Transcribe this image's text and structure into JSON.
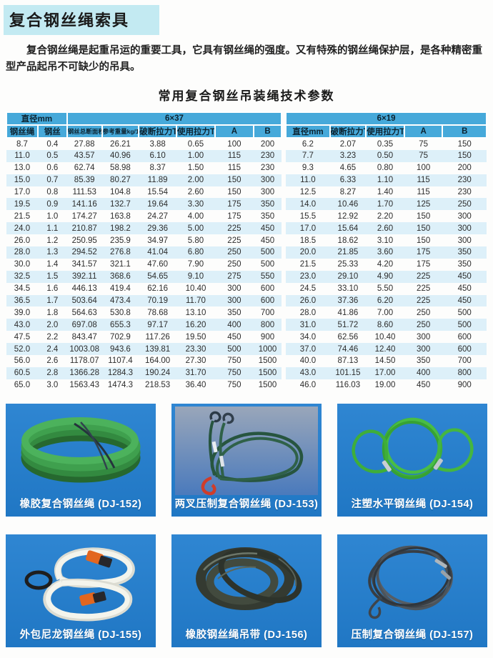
{
  "page": {
    "title": "复合钢丝绳索具",
    "intro": "复合钢丝绳是起重吊运的重要工具，它具有钢丝绳的强度。又有特殊的钢丝绳保护层，是各种精密重型产品起吊不可缺少的吊具。"
  },
  "colors": {
    "title_highlight": "#c3eaf2",
    "table_header_blue": "#46a9da",
    "table_row_alt_blue": "#ddf0f9",
    "panel_blue": "#2580cc",
    "caption_text": "#ffffff"
  },
  "table": {
    "title": "常用复合钢丝吊装绳技术参数",
    "groups": {
      "diameter": "直径mm",
      "g637": "6×37",
      "g619": "6×19"
    },
    "left_columns": [
      "钢丝绳",
      "钢丝",
      "钢丝总断面积mm²",
      "参考重量kg/100m",
      "破断拉力T",
      "使用拉力T",
      "A",
      "B"
    ],
    "right_columns": [
      "直径mm",
      "破断拉力T",
      "使用拉力T",
      "A",
      "B"
    ],
    "left_rows": [
      [
        "8.7",
        "0.4",
        "27.88",
        "26.21",
        "3.88",
        "0.65",
        "100",
        "200"
      ],
      [
        "11.0",
        "0.5",
        "43.57",
        "40.96",
        "6.10",
        "1.00",
        "115",
        "230"
      ],
      [
        "13.0",
        "0.6",
        "62.74",
        "58.98",
        "8.37",
        "1.50",
        "115",
        "230"
      ],
      [
        "15.0",
        "0.7",
        "85.39",
        "80.27",
        "11.89",
        "2.00",
        "150",
        "300"
      ],
      [
        "17.0",
        "0.8",
        "111.53",
        "104.8",
        "15.54",
        "2.60",
        "150",
        "300"
      ],
      [
        "19.5",
        "0.9",
        "141.16",
        "132.7",
        "19.64",
        "3.30",
        "175",
        "350"
      ],
      [
        "21.5",
        "1.0",
        "174.27",
        "163.8",
        "24.27",
        "4.00",
        "175",
        "350"
      ],
      [
        "24.0",
        "1.1",
        "210.87",
        "198.2",
        "29.36",
        "5.00",
        "225",
        "450"
      ],
      [
        "26.0",
        "1.2",
        "250.95",
        "235.9",
        "34.97",
        "5.80",
        "225",
        "450"
      ],
      [
        "28.0",
        "1.3",
        "294.52",
        "276.8",
        "41.04",
        "6.80",
        "250",
        "500"
      ],
      [
        "30.0",
        "1.4",
        "341.57",
        "321.1",
        "47.60",
        "7.90",
        "250",
        "500"
      ],
      [
        "32.5",
        "1.5",
        "392.11",
        "368.6",
        "54.65",
        "9.10",
        "275",
        "550"
      ],
      [
        "34.5",
        "1.6",
        "446.13",
        "419.4",
        "62.16",
        "10.40",
        "300",
        "600"
      ],
      [
        "36.5",
        "1.7",
        "503.64",
        "473.4",
        "70.19",
        "11.70",
        "300",
        "600"
      ],
      [
        "39.0",
        "1.8",
        "564.63",
        "530.8",
        "78.68",
        "13.10",
        "350",
        "700"
      ],
      [
        "43.0",
        "2.0",
        "697.08",
        "655.3",
        "97.17",
        "16.20",
        "400",
        "800"
      ],
      [
        "47.5",
        "2.2",
        "843.47",
        "702.9",
        "117.26",
        "19.50",
        "450",
        "900"
      ],
      [
        "52.0",
        "2.4",
        "1003.08",
        "943.6",
        "139.81",
        "23.30",
        "500",
        "1000"
      ],
      [
        "56.0",
        "2.6",
        "1178.07",
        "1107.4",
        "164.00",
        "27.30",
        "750",
        "1500"
      ],
      [
        "60.5",
        "2.8",
        "1366.28",
        "1284.3",
        "190.24",
        "31.70",
        "750",
        "1500"
      ],
      [
        "65.0",
        "3.0",
        "1563.43",
        "1474.3",
        "218.53",
        "36.40",
        "750",
        "1500"
      ]
    ],
    "right_rows": [
      [
        "6.2",
        "2.07",
        "0.35",
        "75",
        "150"
      ],
      [
        "7.7",
        "3.23",
        "0.50",
        "75",
        "150"
      ],
      [
        "9.3",
        "4.65",
        "0.80",
        "100",
        "200"
      ],
      [
        "11.0",
        "6.33",
        "1.10",
        "115",
        "230"
      ],
      [
        "12.5",
        "8.27",
        "1.40",
        "115",
        "230"
      ],
      [
        "14.0",
        "10.46",
        "1.70",
        "125",
        "250"
      ],
      [
        "15.5",
        "12.92",
        "2.20",
        "150",
        "300"
      ],
      [
        "17.0",
        "15.64",
        "2.60",
        "150",
        "300"
      ],
      [
        "18.5",
        "18.62",
        "3.10",
        "150",
        "300"
      ],
      [
        "20.0",
        "21.85",
        "3.60",
        "175",
        "350"
      ],
      [
        "21.5",
        "25.33",
        "4.20",
        "175",
        "350"
      ],
      [
        "23.0",
        "29.10",
        "4.90",
        "225",
        "450"
      ],
      [
        "24.5",
        "33.10",
        "5.50",
        "225",
        "450"
      ],
      [
        "26.0",
        "37.36",
        "6.20",
        "225",
        "450"
      ],
      [
        "28.0",
        "41.86",
        "7.00",
        "250",
        "500"
      ],
      [
        "31.0",
        "51.72",
        "8.60",
        "250",
        "500"
      ],
      [
        "34.0",
        "62.56",
        "10.40",
        "300",
        "600"
      ],
      [
        "37.0",
        "74.46",
        "12.40",
        "300",
        "600"
      ],
      [
        "40.0",
        "87.13",
        "14.50",
        "350",
        "700"
      ],
      [
        "43.0",
        "101.15",
        "17.00",
        "400",
        "800"
      ],
      [
        "46.0",
        "116.03",
        "19.00",
        "450",
        "900"
      ]
    ]
  },
  "products": [
    {
      "caption": "橡胶复合钢丝绳 (DJ-152)"
    },
    {
      "caption": "两叉压制复合钢丝绳 (DJ-153)"
    },
    {
      "caption": "注塑水平钢丝绳 (DJ-154)"
    },
    {
      "caption": "外包尼龙钢丝绳 (DJ-155)"
    },
    {
      "caption": "橡胶钢丝绳吊带 (DJ-156)"
    },
    {
      "caption": "压制复合钢丝绳 (DJ-157)"
    }
  ]
}
